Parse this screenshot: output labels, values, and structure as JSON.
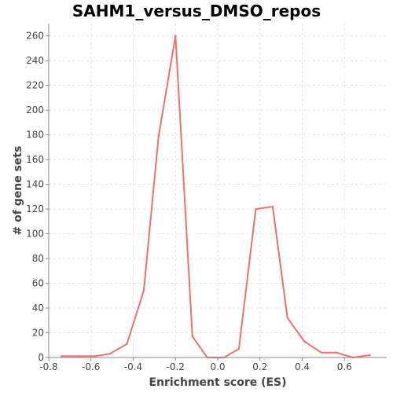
{
  "chart_data": {
    "type": "line",
    "title": "SAHM1_versus_DMSO_repos",
    "xlabel": "Enrichment score (ES)",
    "ylabel": "# of gene sets",
    "xlim": [
      -0.8,
      0.8
    ],
    "ylim": [
      0,
      270
    ],
    "x_ticks": [
      -0.8,
      -0.6,
      -0.4,
      -0.2,
      0,
      0.2,
      0.4,
      0.6
    ],
    "x_tick_labels": [
      "-0.8",
      "-0.6",
      "-0.4",
      "-0.2",
      "0.0",
      "0.2",
      "0.4",
      "0.6"
    ],
    "y_ticks": [
      0,
      20,
      40,
      60,
      80,
      100,
      120,
      140,
      160,
      180,
      200,
      220,
      240,
      260
    ],
    "y_tick_labels": [
      "0",
      "20",
      "40",
      "60",
      "80",
      "100",
      "120",
      "140",
      "160",
      "180",
      "200",
      "220",
      "240",
      "260"
    ],
    "grid": true,
    "series": [
      {
        "color": "#f07070",
        "x": [
          -0.74,
          -0.66,
          -0.58,
          -0.51,
          -0.43,
          -0.35,
          -0.28,
          -0.2,
          -0.12,
          -0.05,
          0.03,
          0.1,
          0.18,
          0.26,
          0.33,
          0.41,
          0.49,
          0.56,
          0.64,
          0.72
        ],
        "y": [
          1,
          1,
          1,
          3,
          11,
          54,
          179,
          260,
          17,
          0,
          0,
          7,
          120,
          122,
          32,
          13,
          4,
          4,
          0,
          2
        ]
      }
    ]
  }
}
